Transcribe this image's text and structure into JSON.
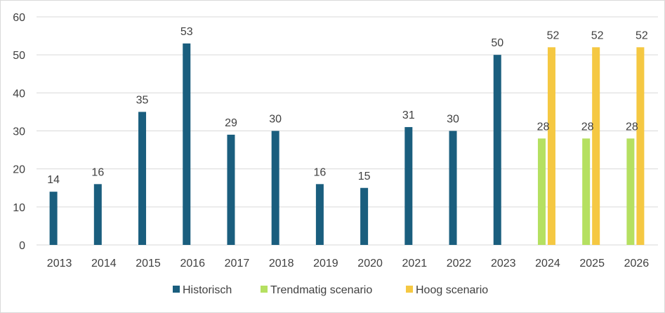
{
  "chart_data": {
    "type": "bar",
    "title": "",
    "xlabel": "",
    "ylabel": "",
    "ylim": [
      0,
      60
    ],
    "yticks": [
      0,
      10,
      20,
      30,
      40,
      50,
      60
    ],
    "grid": true,
    "legend_position": "bottom",
    "categories": [
      "2013",
      "2014",
      "2015",
      "2016",
      "2017",
      "2018",
      "2019",
      "2020",
      "2021",
      "2022",
      "2023",
      "2024",
      "2025",
      "2026"
    ],
    "series": [
      {
        "name": "Historisch",
        "color": "#1a5e7e",
        "values": [
          14,
          16,
          35,
          53,
          29,
          30,
          16,
          15,
          31,
          30,
          50,
          null,
          null,
          null
        ]
      },
      {
        "name": "Trendmatig scenario",
        "color": "#b5e061",
        "values": [
          null,
          null,
          null,
          null,
          null,
          null,
          null,
          null,
          null,
          null,
          null,
          28,
          28,
          28
        ]
      },
      {
        "name": "Hoog scenario",
        "color": "#f5c842",
        "values": [
          null,
          null,
          null,
          null,
          null,
          null,
          null,
          null,
          null,
          null,
          null,
          52,
          52,
          52
        ]
      }
    ]
  }
}
